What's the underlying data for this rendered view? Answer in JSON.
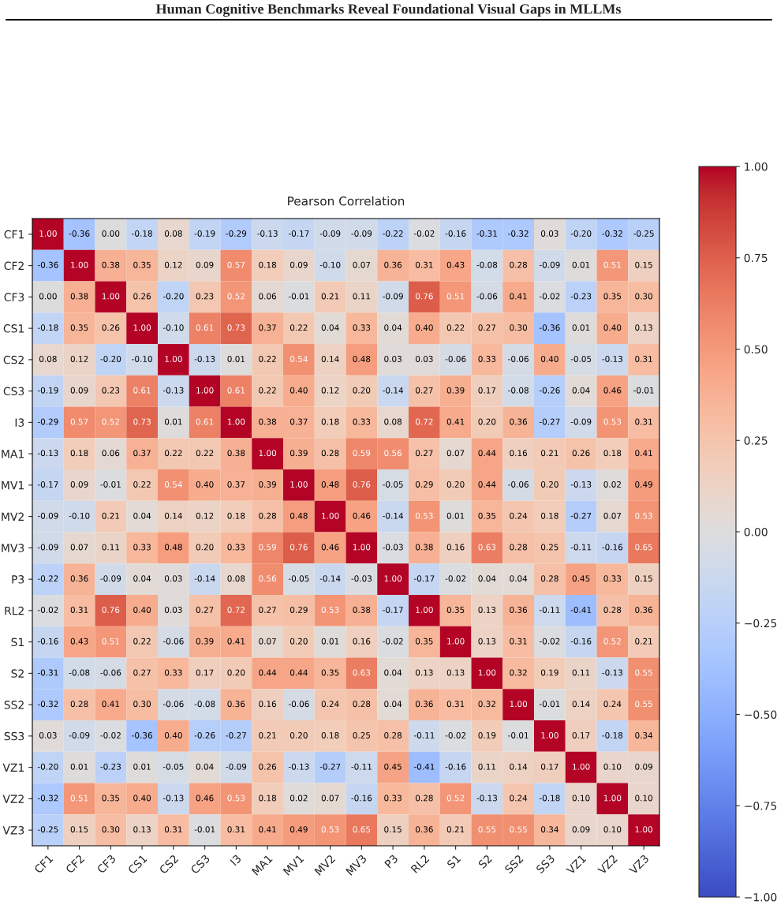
{
  "chart_data": {
    "type": "heatmap",
    "title": "Human Cognitive Benchmarks Reveal Foundational Visual Gaps in MLLMs",
    "subtitle": "Pearson Correlation",
    "categories": [
      "CF1",
      "CF2",
      "CF3",
      "CS1",
      "CS2",
      "CS3",
      "I3",
      "MA1",
      "MV1",
      "MV2",
      "MV3",
      "P3",
      "RL2",
      "S1",
      "S2",
      "SS2",
      "SS3",
      "VZ1",
      "VZ2",
      "VZ3"
    ],
    "y_categories": [
      "CF1",
      "CF2",
      "CF3",
      "CS1",
      "CS2",
      "CS3",
      "I3",
      "MA1",
      "MV1",
      "MV2",
      "MV3",
      "P3",
      "RL2",
      "S1",
      "S2",
      "SS2",
      "SS3",
      "VZ1",
      "VZ2",
      "VZ3"
    ],
    "cells": [
      [
        1.0,
        -0.36,
        0.0,
        -0.18,
        0.08,
        -0.19,
        -0.29,
        -0.13,
        -0.17,
        -0.09,
        -0.09,
        -0.22,
        -0.02,
        -0.16,
        -0.31,
        -0.32,
        0.03,
        -0.2,
        -0.32,
        -0.25
      ],
      [
        -0.36,
        1.0,
        0.38,
        0.35,
        0.12,
        0.09,
        0.57,
        0.18,
        0.09,
        -0.1,
        0.07,
        0.36,
        0.31,
        0.43,
        -0.08,
        0.28,
        -0.09,
        0.01,
        0.51,
        0.15
      ],
      [
        0.0,
        0.38,
        1.0,
        0.26,
        -0.2,
        0.23,
        0.52,
        0.06,
        -0.01,
        0.21,
        0.11,
        -0.09,
        0.76,
        0.51,
        -0.06,
        0.41,
        -0.02,
        -0.23,
        0.35,
        0.3
      ],
      [
        -0.18,
        0.35,
        0.26,
        1.0,
        -0.1,
        0.61,
        0.73,
        0.37,
        0.22,
        0.04,
        0.33,
        0.04,
        0.4,
        0.22,
        0.27,
        0.3,
        -0.36,
        0.01,
        0.4,
        0.13
      ],
      [
        0.08,
        0.12,
        -0.2,
        -0.1,
        1.0,
        -0.13,
        0.01,
        0.22,
        0.54,
        0.14,
        0.48,
        0.03,
        0.03,
        -0.06,
        0.33,
        -0.06,
        0.4,
        -0.05,
        -0.13,
        0.31
      ],
      [
        -0.19,
        0.09,
        0.23,
        0.61,
        -0.13,
        1.0,
        0.61,
        0.22,
        0.4,
        0.12,
        0.2,
        -0.14,
        0.27,
        0.39,
        0.17,
        -0.08,
        -0.26,
        0.04,
        0.46,
        -0.01
      ],
      [
        -0.29,
        0.57,
        0.52,
        0.73,
        0.01,
        0.61,
        1.0,
        0.38,
        0.37,
        0.18,
        0.33,
        0.08,
        0.72,
        0.41,
        0.2,
        0.36,
        -0.27,
        -0.09,
        0.53,
        0.31
      ],
      [
        -0.13,
        0.18,
        0.06,
        0.37,
        0.22,
        0.22,
        0.38,
        1.0,
        0.39,
        0.28,
        0.59,
        0.56,
        0.27,
        0.07,
        0.44,
        0.16,
        0.21,
        0.26,
        0.18,
        0.41
      ],
      [
        -0.17,
        0.09,
        -0.01,
        0.22,
        0.54,
        0.4,
        0.37,
        0.39,
        1.0,
        0.48,
        0.76,
        -0.05,
        0.29,
        0.2,
        0.44,
        -0.06,
        0.2,
        -0.13,
        0.02,
        0.49
      ],
      [
        -0.09,
        -0.1,
        0.21,
        0.04,
        0.14,
        0.12,
        0.18,
        0.28,
        0.48,
        1.0,
        0.46,
        -0.14,
        0.53,
        0.01,
        0.35,
        0.24,
        0.18,
        -0.27,
        0.07,
        0.53
      ],
      [
        -0.09,
        0.07,
        0.11,
        0.33,
        0.48,
        0.2,
        0.33,
        0.59,
        0.76,
        0.46,
        1.0,
        -0.03,
        0.38,
        0.16,
        0.63,
        0.28,
        0.25,
        -0.11,
        -0.16,
        0.65
      ],
      [
        -0.22,
        0.36,
        -0.09,
        0.04,
        0.03,
        -0.14,
        0.08,
        0.56,
        -0.05,
        -0.14,
        -0.03,
        1.0,
        -0.17,
        -0.02,
        0.04,
        0.04,
        0.28,
        0.45,
        0.33,
        0.15
      ],
      [
        -0.02,
        0.31,
        0.76,
        0.4,
        0.03,
        0.27,
        0.72,
        0.27,
        0.29,
        0.53,
        0.38,
        -0.17,
        1.0,
        0.35,
        0.13,
        0.36,
        -0.11,
        -0.41,
        0.28,
        0.36
      ],
      [
        -0.16,
        0.43,
        0.51,
        0.22,
        -0.06,
        0.39,
        0.41,
        0.07,
        0.2,
        0.01,
        0.16,
        -0.02,
        0.35,
        1.0,
        0.13,
        0.31,
        -0.02,
        -0.16,
        0.52,
        0.21
      ],
      [
        -0.31,
        -0.08,
        -0.06,
        0.27,
        0.33,
        0.17,
        0.2,
        0.44,
        0.44,
        0.35,
        0.63,
        0.04,
        0.13,
        0.13,
        1.0,
        0.32,
        0.19,
        0.11,
        -0.13,
        0.55
      ],
      [
        -0.32,
        0.28,
        0.41,
        0.3,
        -0.06,
        -0.08,
        0.36,
        0.16,
        -0.06,
        0.24,
        0.28,
        0.04,
        0.36,
        0.31,
        0.32,
        1.0,
        -0.01,
        0.14,
        0.24,
        0.55
      ],
      [
        0.03,
        -0.09,
        -0.02,
        -0.36,
        0.4,
        -0.26,
        -0.27,
        0.21,
        0.2,
        0.18,
        0.25,
        0.28,
        -0.11,
        -0.02,
        0.19,
        -0.01,
        1.0,
        0.17,
        -0.18,
        0.34
      ],
      [
        -0.2,
        0.01,
        -0.23,
        0.01,
        -0.05,
        0.04,
        -0.09,
        0.26,
        -0.13,
        -0.27,
        -0.11,
        0.45,
        -0.41,
        -0.16,
        0.11,
        0.14,
        0.17,
        1.0,
        0.1,
        0.09
      ],
      [
        -0.32,
        0.51,
        0.35,
        0.4,
        -0.13,
        0.46,
        0.53,
        0.18,
        0.02,
        0.07,
        -0.16,
        0.33,
        0.28,
        0.52,
        -0.13,
        0.24,
        -0.18,
        0.1,
        1.0,
        0.1
      ],
      [
        -0.25,
        0.15,
        0.3,
        0.13,
        0.31,
        -0.01,
        0.31,
        0.41,
        0.49,
        0.53,
        0.65,
        0.15,
        0.36,
        0.21,
        0.55,
        0.55,
        0.34,
        0.09,
        0.1,
        1.0
      ]
    ],
    "cell_labels": [
      [
        "1.00",
        "-0.36",
        "0.00",
        "-0.18",
        "0.08",
        "-0.19",
        "-0.29",
        "-0.13",
        "-0.17",
        "-0.09",
        "-0.09",
        "-0.22",
        "-0.02",
        "-0.16",
        "-0.31",
        "-0.32",
        "0.03",
        "-0.20",
        "-0.32",
        "-0.25"
      ],
      [
        "-0.36",
        "1.00",
        "0.38",
        "0.35",
        "0.12",
        "0.09",
        "0.57",
        "0.18",
        "0.09",
        "-0.10",
        "0.07",
        "0.36",
        "0.31",
        "0.43",
        "-0.08",
        "0.28",
        "-0.09",
        "0.01",
        "0.51",
        "0.15"
      ],
      [
        "0.00",
        "0.38",
        "1.00",
        "0.26",
        "-0.20",
        "0.23",
        "0.52",
        "0.06",
        "-0.01",
        "0.21",
        "0.11",
        "-0.09",
        "0.76",
        "0.51",
        "-0.06",
        "0.41",
        "-0.02",
        "-0.23",
        "0.35",
        "0.30"
      ],
      [
        "-0.18",
        "0.35",
        "0.26",
        "1.00",
        "-0.10",
        "0.61",
        "0.73",
        "0.37",
        "0.22",
        "0.04",
        "0.33",
        "0.04",
        "0.40",
        "0.22",
        "0.27",
        "0.30",
        "-0.36",
        "0.01",
        "0.40",
        "0.13"
      ],
      [
        "0.08",
        "0.12",
        "-0.20",
        "-0.10",
        "1.00",
        "-0.13",
        "0.01",
        "0.22",
        "0.54",
        "0.14",
        "0.48",
        "0.03",
        "0.03",
        "-0.06",
        "0.33",
        "-0.06",
        "0.40",
        "-0.05",
        "-0.13",
        "0.31"
      ],
      [
        "-0.19",
        "0.09",
        "0.23",
        "0.61",
        "-0.13",
        "1.00",
        "0.61",
        "0.22",
        "0.40",
        "0.12",
        "0.20",
        "-0.14",
        "0.27",
        "0.39",
        "0.17",
        "-0.08",
        "-0.26",
        "0.04",
        "0.46",
        "-0.01"
      ],
      [
        "-0.29",
        "0.57",
        "0.52",
        "0.73",
        "0.01",
        "0.61",
        "1.00",
        "0.38",
        "0.37",
        "0.18",
        "0.33",
        "0.08",
        "0.72",
        "0.41",
        "0.20",
        "0.36",
        "-0.27",
        "-0.09",
        "0.53",
        "0.31"
      ],
      [
        "-0.13",
        "0.18",
        "0.06",
        "0.37",
        "0.22",
        "0.22",
        "0.38",
        "1.00",
        "0.39",
        "0.28",
        "0.59",
        "0.56",
        "0.27",
        "0.07",
        "0.44",
        "0.16",
        "0.21",
        "0.26",
        "0.18",
        "0.41"
      ],
      [
        "-0.17",
        "0.09",
        "-0.01",
        "0.22",
        "0.54",
        "0.40",
        "0.37",
        "0.39",
        "1.00",
        "0.48",
        "0.76",
        "-0.05",
        "0.29",
        "0.20",
        "0.44",
        "-0.06",
        "0.20",
        "-0.13",
        "0.02",
        "0.49"
      ],
      [
        "-0.09",
        "-0.10",
        "0.21",
        "0.04",
        "0.14",
        "0.12",
        "0.18",
        "0.28",
        "0.48",
        "1.00",
        "0.46",
        "-0.14",
        "0.53",
        "0.01",
        "0.35",
        "0.24",
        "0.18",
        "-0.27",
        "0.07",
        "0.53"
      ],
      [
        "-0.09",
        "0.07",
        "0.11",
        "0.33",
        "0.48",
        "0.20",
        "0.33",
        "0.59",
        "0.76",
        "0.46",
        "1.00",
        "-0.03",
        "0.38",
        "0.16",
        "0.63",
        "0.28",
        "0.25",
        "-0.11",
        "-0.16",
        "0.65"
      ],
      [
        "-0.22",
        "0.36",
        "-0.09",
        "0.04",
        "0.03",
        "-0.14",
        "0.08",
        "0.56",
        "-0.05",
        "-0.14",
        "-0.03",
        "1.00",
        "-0.17",
        "-0.02",
        "0.04",
        "0.04",
        "0.28",
        "0.45",
        "0.33",
        "0.15"
      ],
      [
        "-0.02",
        "0.31",
        "0.76",
        "0.40",
        "0.03",
        "0.27",
        "0.72",
        "0.27",
        "0.29",
        "0.53",
        "0.38",
        "-0.17",
        "1.00",
        "0.35",
        "0.13",
        "0.36",
        "-0.11",
        "-0.41",
        "0.28",
        "0.36"
      ],
      [
        "-0.16",
        "0.43",
        "0.51",
        "0.22",
        "-0.06",
        "0.39",
        "0.41",
        "0.07",
        "0.20",
        "0.01",
        "0.16",
        "-0.02",
        "0.35",
        "1.00",
        "0.13",
        "0.31",
        "-0.02",
        "-0.16",
        "0.52",
        "0.21"
      ],
      [
        "-0.31",
        "-0.08",
        "-0.06",
        "0.27",
        "0.33",
        "0.17",
        "0.20",
        "0.44",
        "0.44",
        "0.35",
        "0.63",
        "0.04",
        "0.13",
        "0.13",
        "1.00",
        "0.32",
        "0.19",
        "0.11",
        "-0.13",
        "0.55"
      ],
      [
        "-0.32",
        "0.28",
        "0.41",
        "0.30",
        "-0.06",
        "-0.08",
        "0.36",
        "0.16",
        "-0.06",
        "0.24",
        "0.28",
        "0.04",
        "0.36",
        "0.31",
        "0.32",
        "1.00",
        "-0.01",
        "0.14",
        "0.24",
        "0.55"
      ],
      [
        "0.03",
        "-0.09",
        "-0.02",
        "-0.36",
        "0.40",
        "-0.26",
        "-0.27",
        "0.21",
        "0.20",
        "0.18",
        "0.25",
        "0.28",
        "-0.11",
        "-0.02",
        "0.19",
        "-0.01",
        "1.00",
        "0.17",
        "-0.18",
        "0.34"
      ],
      [
        "-0.20",
        "0.01",
        "-0.23",
        "0.01",
        "-0.05",
        "0.04",
        "-0.09",
        "0.26",
        "-0.13",
        "-0.27",
        "-0.11",
        "0.45",
        "-0.41",
        "-0.16",
        "0.11",
        "0.14",
        "0.17",
        "1.00",
        "0.10",
        "0.09"
      ],
      [
        "-0.32",
        "0.51",
        "0.35",
        "0.40",
        "-0.13",
        "0.46",
        "0.53",
        "0.18",
        "0.02",
        "0.07",
        "-0.16",
        "0.33",
        "0.28",
        "0.52",
        "-0.13",
        "0.24",
        "-0.18",
        "0.10",
        "1.00",
        "0.10"
      ],
      [
        "-0.25",
        "0.15",
        "0.30",
        "0.13",
        "0.31",
        "-0.01",
        "0.31",
        "0.41",
        "0.49",
        "0.53",
        "0.65",
        "0.15",
        "0.36",
        "0.21",
        "0.55",
        "0.55",
        "0.34",
        "0.09",
        "0.10",
        "1.00"
      ]
    ],
    "clim": [
      -1.0,
      1.0
    ],
    "cticks": [
      {
        "value": -1.0,
        "label": "−1.00"
      },
      {
        "value": -0.75,
        "label": "−0.75"
      },
      {
        "value": -0.5,
        "label": "−0.50"
      },
      {
        "value": -0.25,
        "label": "−0.25"
      },
      {
        "value": 0,
        "label": "0.00"
      },
      {
        "value": 0.25,
        "label": "0.25"
      },
      {
        "value": 0.5,
        "label": "0.50"
      },
      {
        "value": 0.75,
        "label": "0.75"
      },
      {
        "value": 1.0,
        "label": "1.00"
      }
    ]
  }
}
